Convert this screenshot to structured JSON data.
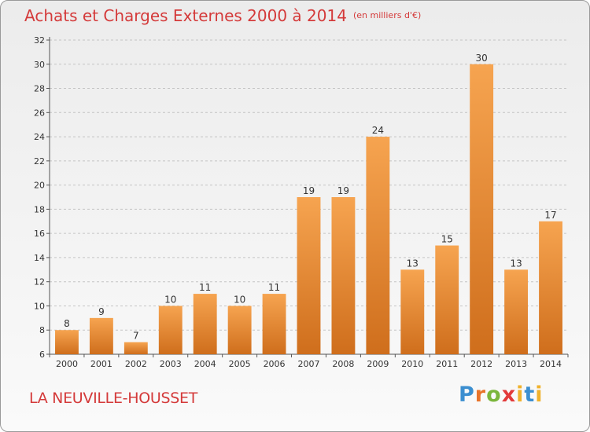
{
  "header": {
    "title": "Achats et Charges Externes 2000 à 2014",
    "unit": "(en milliers d'€)"
  },
  "footer": {
    "location": "LA NEUVILLE-HOUSSET",
    "brand_letters": [
      "P",
      "r",
      "o",
      "x",
      "i",
      "t",
      "i"
    ]
  },
  "colors": {
    "title": "#d43a3a",
    "bar_top": "#f6a450",
    "bar_bottom": "#cf6e1c",
    "grid": "#c4c4c4"
  },
  "chart_data": {
    "type": "bar",
    "title": "Achats et Charges Externes 2000 à 2014",
    "xlabel": "",
    "ylabel": "",
    "categories": [
      "2000",
      "2001",
      "2002",
      "2003",
      "2004",
      "2005",
      "2006",
      "2007",
      "2008",
      "2009",
      "2010",
      "2011",
      "2012",
      "2013",
      "2014"
    ],
    "values": [
      8,
      9,
      7,
      10,
      11,
      10,
      11,
      19,
      19,
      24,
      13,
      15,
      30,
      13,
      17
    ],
    "ylim": [
      6,
      32
    ],
    "yticks": [
      6,
      8,
      10,
      12,
      14,
      16,
      18,
      20,
      22,
      24,
      26,
      28,
      30,
      32
    ],
    "grid": "horizontal-dashed",
    "legend": "none",
    "data_labels": true
  }
}
